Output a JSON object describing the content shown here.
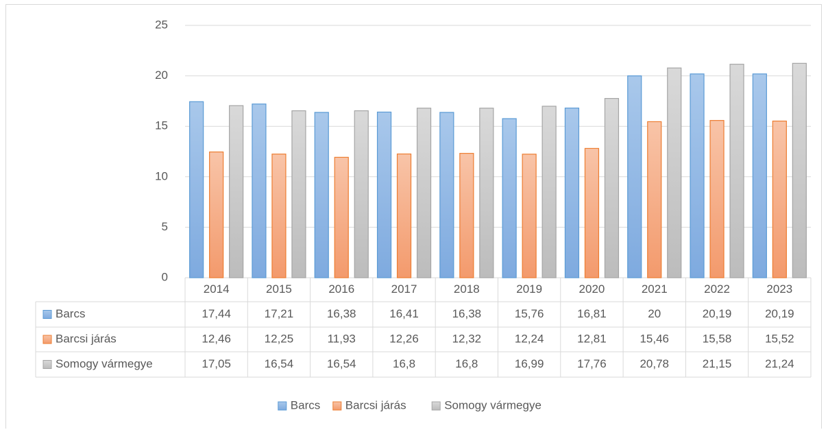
{
  "chart_data": {
    "type": "bar",
    "categories": [
      "2014",
      "2015",
      "2016",
      "2017",
      "2018",
      "2019",
      "2020",
      "2021",
      "2022",
      "2023"
    ],
    "series": [
      {
        "name": "Barcs",
        "color": "#5b9bd5",
        "values": [
          17.44,
          17.21,
          16.38,
          16.41,
          16.38,
          15.76,
          16.81,
          20,
          20.19,
          20.19
        ],
        "value_labels": [
          "17,44",
          "17,21",
          "16,38",
          "16,41",
          "16,38",
          "15,76",
          "16,81",
          "20",
          "20,19",
          "20,19"
        ]
      },
      {
        "name": "Barcsi járás",
        "color": "#ed7d31",
        "values": [
          12.46,
          12.25,
          11.93,
          12.26,
          12.32,
          12.24,
          12.81,
          15.46,
          15.58,
          15.52
        ],
        "value_labels": [
          "12,46",
          "12,25",
          "11,93",
          "12,26",
          "12,32",
          "12,24",
          "12,81",
          "15,46",
          "15,58",
          "15,52"
        ]
      },
      {
        "name": "Somogy vármegye",
        "color": "#a5a5a5",
        "values": [
          17.05,
          16.54,
          16.54,
          16.8,
          16.8,
          16.99,
          17.76,
          20.78,
          21.15,
          21.24
        ],
        "value_labels": [
          "17,05",
          "16,54",
          "16,54",
          "16,8",
          "16,8",
          "16,99",
          "17,76",
          "20,78",
          "21,15",
          "21,24"
        ]
      }
    ],
    "ylim": [
      0,
      25
    ],
    "yticks": [
      0,
      5,
      10,
      15,
      20,
      25
    ],
    "grid": true,
    "legend": "bottom"
  }
}
